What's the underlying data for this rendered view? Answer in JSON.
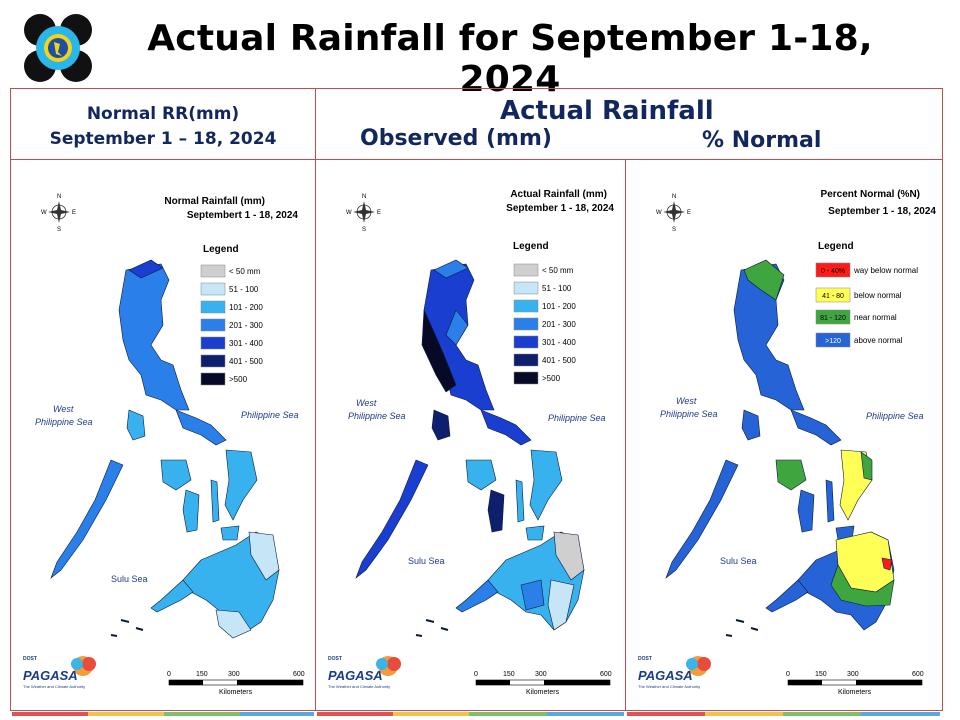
{
  "header": {
    "title": "Actual Rainfall for September 1-18, 2024"
  },
  "section_headers": {
    "normal_line1": "Normal RR(mm)",
    "normal_line2": "September 1 – 18, 2024",
    "actual": "Actual Rainfall",
    "observed": "Observed (mm)",
    "percent": "% Normal"
  },
  "panels": [
    {
      "title_line1": "Normal Rainfall (mm)",
      "title_line2": "Septembert 1 - 18, 2024",
      "legend_title": "Legend",
      "legend": [
        {
          "label": "< 50 mm",
          "color": "#cfcfcf"
        },
        {
          "label": "51 - 100",
          "color": "#c6e6f7"
        },
        {
          "label": "101 - 200",
          "color": "#38b2ee"
        },
        {
          "label": "201 - 300",
          "color": "#2b7fe8"
        },
        {
          "label": "301 - 400",
          "color": "#1a3fd0"
        },
        {
          "label": "401 - 500",
          "color": "#0e1f6e"
        },
        {
          "label": ">500",
          "color": "#060a26"
        }
      ]
    },
    {
      "title_line1": "Actual Rainfall (mm)",
      "title_line2": "September 1 - 18, 2024",
      "legend_title": "Legend",
      "legend": [
        {
          "label": "< 50 mm",
          "color": "#cfcfcf"
        },
        {
          "label": "51 - 100",
          "color": "#c6e6f7"
        },
        {
          "label": "101 - 200",
          "color": "#38b2ee"
        },
        {
          "label": "201 - 300",
          "color": "#2b7fe8"
        },
        {
          "label": "301 - 400",
          "color": "#1a3fd0"
        },
        {
          "label": "401 - 500",
          "color": "#0e1f6e"
        },
        {
          "label": ">500",
          "color": "#060a26"
        }
      ]
    },
    {
      "title_line1": "Percent Normal (%N)",
      "title_line2": "September 1 - 18, 2024",
      "legend_title": "Legend",
      "legend": [
        {
          "box": "0 - 40%",
          "label": "way below normal",
          "color": "#ff1a1a"
        },
        {
          "box": "41 - 80",
          "label": "below normal",
          "color": "#ffff55"
        },
        {
          "box": "81 - 120",
          "label": "near normal",
          "color": "#3fa63f"
        },
        {
          "box": ">120",
          "label": "above normal",
          "color": "#2563d6"
        }
      ]
    }
  ],
  "map_labels": {
    "west_sea_1": "West",
    "west_sea_2": "Philippine Sea",
    "east_sea": "Philippine Sea",
    "sulu_sea": "Sulu Sea",
    "compass_n": "N",
    "compass_s": "S",
    "compass_e": "E",
    "compass_w": "W"
  },
  "scale": {
    "ticks": [
      "0",
      "150",
      "300",
      "600"
    ],
    "unit": "Kilometers"
  },
  "branding": {
    "agency": "PAGASA",
    "dost": "DOST",
    "tagline": "The Weather and Climate Authority"
  }
}
